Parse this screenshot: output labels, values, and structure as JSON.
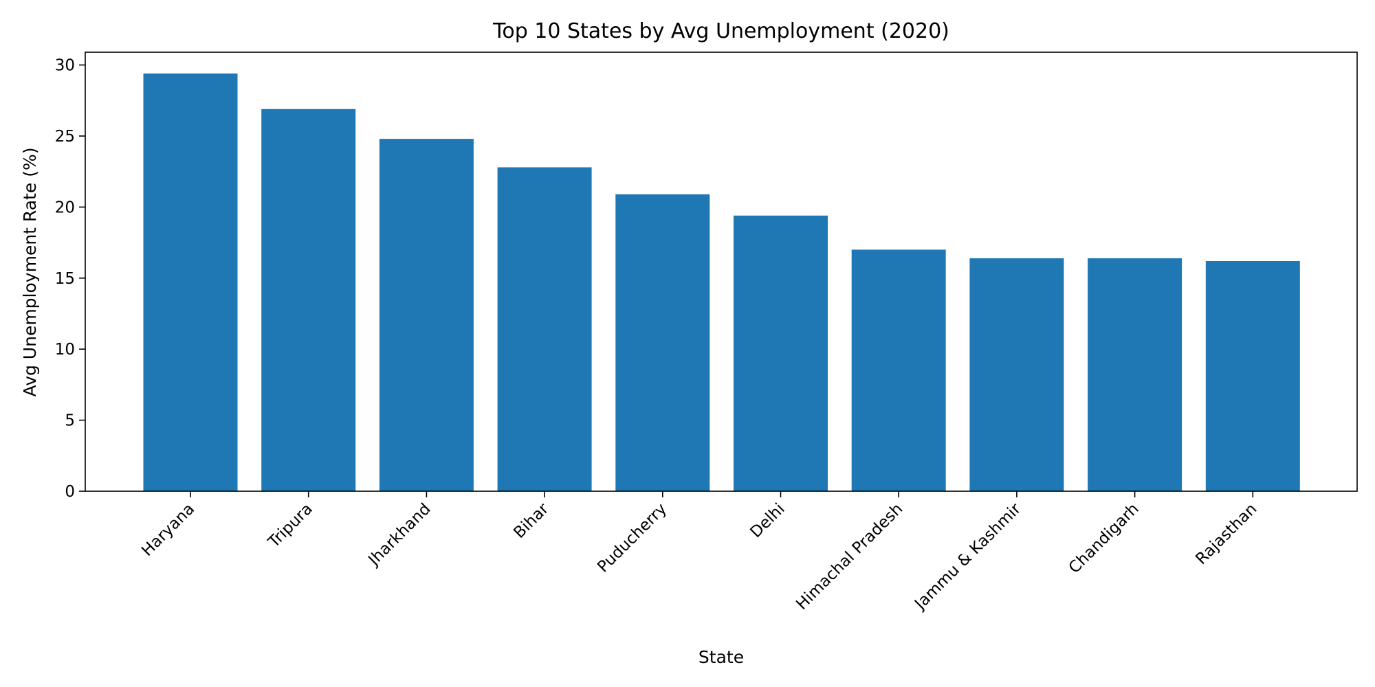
{
  "chart_data": {
    "type": "bar",
    "title": "Top 10 States by Avg Unemployment (2020)",
    "xlabel": "State",
    "ylabel": "Avg Unemployment Rate (%)",
    "categories": [
      "Haryana",
      "Tripura",
      "Jharkhand",
      "Bihar",
      "Puducherry",
      "Delhi",
      "Himachal Pradesh",
      "Jammu & Kashmir",
      "Chandigarh",
      "Rajasthan"
    ],
    "values": [
      29.4,
      26.9,
      24.8,
      22.8,
      20.9,
      19.4,
      17.0,
      16.4,
      16.4,
      16.2
    ],
    "ylim": [
      0,
      30.9
    ],
    "yticks": [
      0,
      5,
      10,
      15,
      20,
      25,
      30
    ],
    "bar_color": "#1f77b4",
    "grid": false,
    "legend": "none"
  }
}
